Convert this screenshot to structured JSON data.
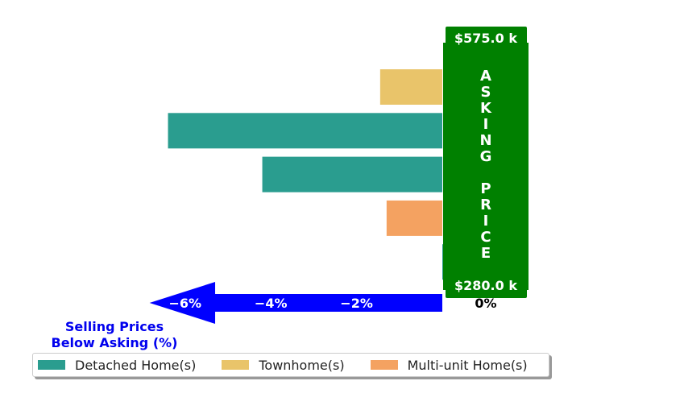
{
  "chart_data": {
    "type": "bar",
    "orientation": "horizontal",
    "categories": [
      "",
      "",
      "",
      "",
      ""
    ],
    "bars": [
      {
        "series": "Townhome(s)",
        "value": -1.45
      },
      {
        "series": "Detached Home(s)",
        "value": -6.4
      },
      {
        "series": "Detached Home(s)",
        "value": -4.2
      },
      {
        "series": "Multi-unit Home(s)",
        "value": -1.3
      },
      {
        "series": "Detached Home(s)",
        "value": 0.2
      }
    ],
    "series": [
      {
        "name": "Detached Home(s)",
        "color": "#2a9d8f"
      },
      {
        "name": "Townhome(s)",
        "color": "#e9c46a"
      },
      {
        "name": "Multi-unit Home(s)",
        "color": "#f4a261"
      }
    ],
    "x_ticks": [
      "−6%",
      "−4%",
      "−2%",
      "0%"
    ],
    "x_tick_values": [
      -6,
      -4,
      -2,
      0
    ],
    "xlim": [
      -7,
      0.3
    ],
    "xlabel_line1": "Selling Prices",
    "xlabel_line2": "Below Asking (%)",
    "asking_price_letters": [
      "A",
      "S",
      "K",
      "I",
      "N",
      "G",
      "",
      "P",
      "R",
      "I",
      "C",
      "E"
    ],
    "asking_price_top": "$575.0 k",
    "asking_price_bottom": "$280.0 k",
    "legend_position": "bottom-left",
    "colors": {
      "asking_box": "#008000",
      "arrow": "#0000ff",
      "caption": "#0000ee",
      "tick_on_arrow": "#ffffff",
      "zero_tick": "#000000"
    }
  }
}
